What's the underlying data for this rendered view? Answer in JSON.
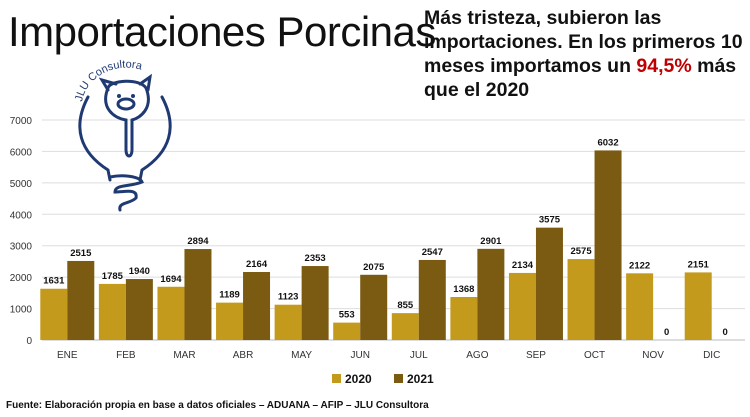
{
  "title": "Importaciones Porcinas",
  "subtitle": {
    "before": "Más tristeza, subieron las importaciones. En los primeros 10 meses importamos un ",
    "highlight": "94,5%",
    "after": " más que el 2020"
  },
  "logo_text": "JLU Consultora",
  "source": "Fuente: Elaboración propia en base a datos oficiales – ADUANA – AFIP – JLU Consultora",
  "colors": {
    "s2020": "#c49a1c",
    "s2021": "#7b5b12",
    "highlight": "#c00000"
  },
  "chart_data": {
    "type": "bar",
    "categories": [
      "ENE",
      "FEB",
      "MAR",
      "ABR",
      "MAY",
      "JUN",
      "JUL",
      "AGO",
      "SEP",
      "OCT",
      "NOV",
      "DIC"
    ],
    "series": [
      {
        "name": "2020",
        "values": [
          1631,
          1785,
          1694,
          1189,
          1123,
          553,
          855,
          1368,
          2134,
          2575,
          2122,
          2151
        ]
      },
      {
        "name": "2021",
        "values": [
          2515,
          1940,
          2894,
          2164,
          2353,
          2075,
          2547,
          2901,
          3575,
          6032,
          0,
          0
        ]
      }
    ],
    "ylim": [
      0,
      7000
    ],
    "yticks": [
      0,
      1000,
      2000,
      3000,
      4000,
      5000,
      6000,
      7000
    ],
    "grid": true,
    "legend": "bottom"
  }
}
